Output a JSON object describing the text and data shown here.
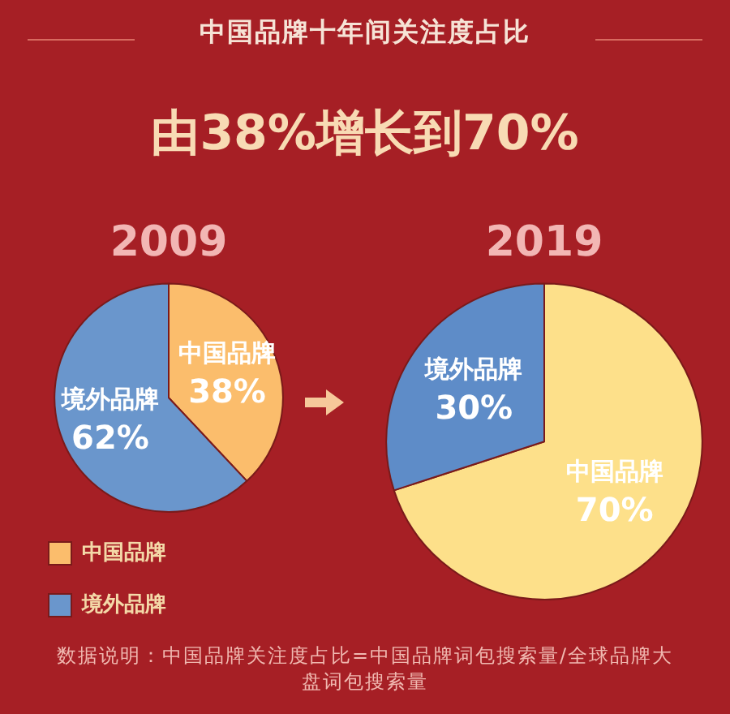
{
  "chart_data": [
    {
      "type": "other",
      "title": "中国品牌十年间关注度占比",
      "subtitle": "由38%增长到70%",
      "annotations": [
        "数据说明：中国品牌关注度占比=中国品牌词包搜索量/全球品牌大盘词包搜索量"
      ]
    },
    {
      "type": "pie",
      "title": "2009",
      "categories": [
        "中国品牌",
        "境外品牌"
      ],
      "values": [
        38,
        62
      ],
      "colors": [
        "#fbbd6c",
        "#6a96cc"
      ],
      "value_labels": [
        "38%",
        "62%"
      ],
      "legend": "bottom"
    },
    {
      "type": "pie",
      "title": "2019",
      "categories": [
        "中国品牌",
        "境外品牌"
      ],
      "values": [
        70,
        30
      ],
      "colors": [
        "#fde08a",
        "#5e8cc8"
      ],
      "value_labels": [
        "70%",
        "30%"
      ]
    }
  ]
}
